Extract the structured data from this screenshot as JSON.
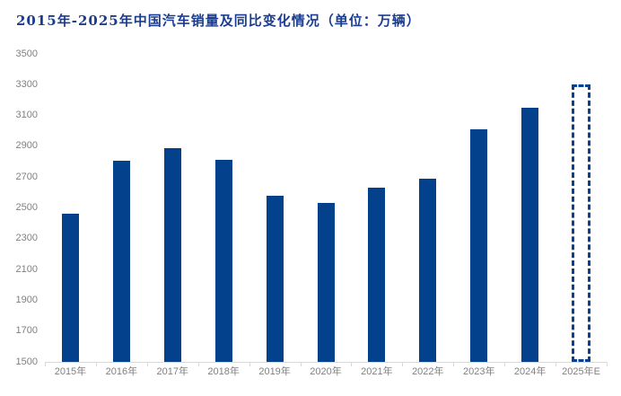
{
  "chart_data": {
    "type": "bar",
    "title": "2015年-2025年中国汽车销量及同比变化情况（单位：万辆）",
    "unit": "万辆",
    "categories": [
      "2015年",
      "2016年",
      "2017年",
      "2018年",
      "2019年",
      "2020年",
      "2021年",
      "2022年",
      "2023年",
      "2024年",
      "2025年E"
    ],
    "values": [
      2460,
      2805,
      2890,
      2810,
      2580,
      2530,
      2630,
      2690,
      3010,
      3150,
      3300
    ],
    "ylim": [
      1500,
      3500
    ],
    "y_tick_step": 200,
    "y_ticks": [
      3500,
      3300,
      3100,
      2900,
      2700,
      2500,
      2300,
      2100,
      1900,
      1700,
      1500
    ],
    "grid": false,
    "legend": "none",
    "forecast_index": 10,
    "forecast_style": "dashed-outline",
    "colors": {
      "bar_fill": "#04418C",
      "forecast_outline": "#0B3F8F",
      "title_text": "#1B3D8F",
      "axis_text": "#808080",
      "axis_line": "#D9D9D9"
    }
  }
}
